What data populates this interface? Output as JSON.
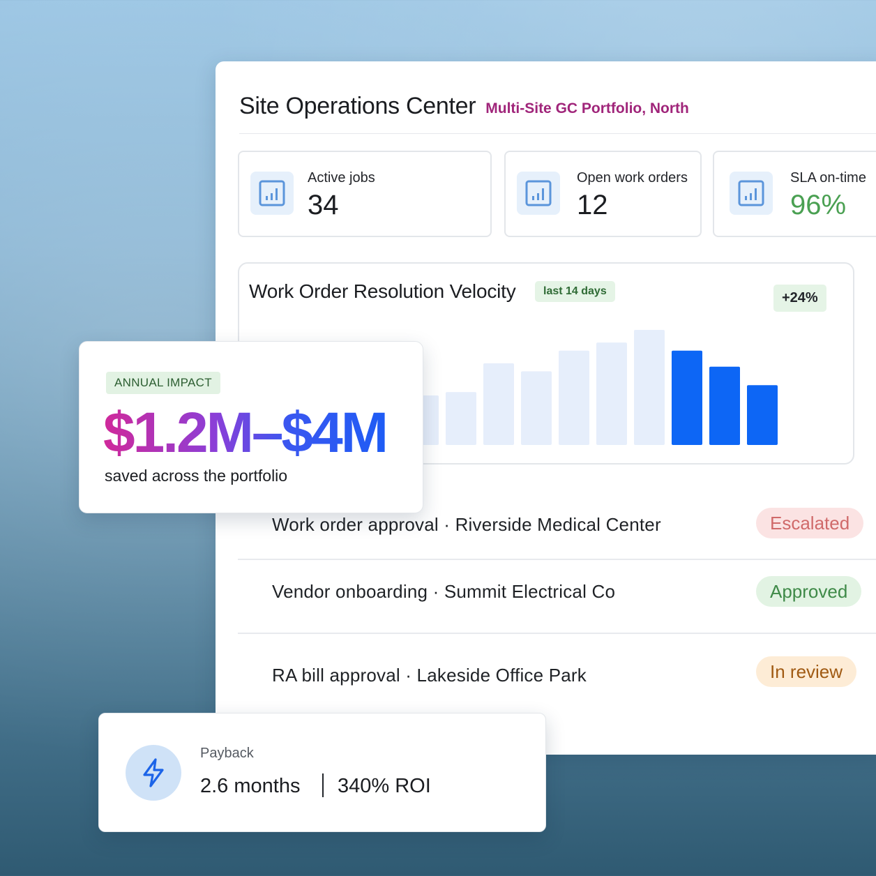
{
  "header": {
    "title": "Site Operations Center",
    "subtitle": "Multi-Site GC Portfolio, North"
  },
  "kpis": [
    {
      "label": "Active jobs",
      "value": "34",
      "icon": "bar-chart-icon"
    },
    {
      "label": "Open work orders",
      "value": "12",
      "icon": "bar-chart-icon"
    },
    {
      "label": "SLA on-time",
      "value": "96%",
      "icon": "bar-chart-icon",
      "value_color": "#4aa052"
    }
  ],
  "chart": {
    "title": "Work Order Resolution Velocity",
    "range": "last 14 days",
    "delta": "+24%"
  },
  "chart_data": {
    "type": "bar",
    "title": "Work Order Resolution Velocity",
    "visible_bar_relative_heights": [
      0.43,
      0.46,
      0.71,
      0.64,
      0.82,
      0.89,
      1.0,
      0.82,
      0.68,
      0.52
    ],
    "highlighted_last_n": 3,
    "colors": {
      "muted": "#e6eefb",
      "highlight": "#0d66f5"
    },
    "note_free": true
  },
  "activity": [
    {
      "text": "Work order approval · Riverside Medical Center",
      "status": "Escalated"
    },
    {
      "text": "Vendor onboarding · Summit Electrical Co",
      "status": "Approved"
    },
    {
      "text": "RA bill approval · Lakeside Office Park",
      "status": "In review"
    }
  ],
  "impact": {
    "badge": "ANNUAL IMPACT",
    "value": "$1.2M–$4M",
    "caption": "saved across the portfolio"
  },
  "payback": {
    "icon": "lightning-bolt-icon",
    "label": "Payback",
    "months": "2.6 months",
    "roi": "340% ROI"
  }
}
